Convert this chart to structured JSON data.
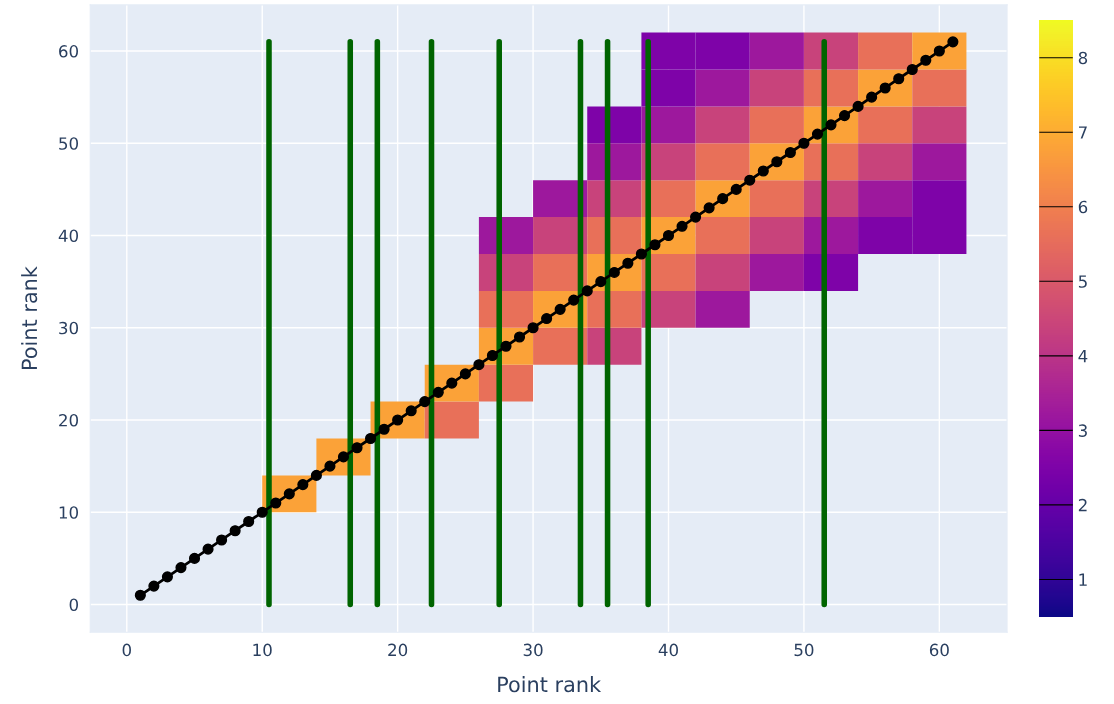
{
  "chart_data": {
    "type": "heatmap",
    "xlabel": "Point rank",
    "ylabel": "Point rank",
    "xlim": [
      -2.7,
      65
    ],
    "ylim": [
      -3,
      65
    ],
    "xticks": [
      0,
      10,
      20,
      30,
      40,
      50,
      60
    ],
    "yticks": [
      0,
      10,
      20,
      30,
      40,
      50,
      60
    ],
    "grid": true,
    "clim": [
      0.5,
      8.5
    ],
    "cticks": [
      1,
      2,
      3,
      4,
      5,
      6,
      7,
      8
    ],
    "x": [
      12,
      16,
      20,
      24,
      28,
      32,
      36,
      40,
      44,
      48,
      52,
      56,
      60
    ],
    "y": [
      12,
      16,
      20,
      24,
      28,
      32,
      36,
      40,
      44,
      48,
      52,
      56,
      60
    ],
    "cells": [
      [
        6.8,
        null,
        null,
        null,
        null,
        null,
        null,
        null,
        null,
        null,
        null,
        null,
        null
      ],
      [
        null,
        6.8,
        null,
        null,
        null,
        null,
        null,
        null,
        null,
        null,
        null,
        null,
        null
      ],
      [
        null,
        null,
        6.8,
        5.6,
        null,
        null,
        null,
        null,
        null,
        null,
        null,
        null,
        null
      ],
      [
        null,
        null,
        null,
        6.8,
        5.6,
        null,
        null,
        null,
        null,
        null,
        null,
        null,
        null
      ],
      [
        null,
        null,
        null,
        null,
        6.8,
        5.6,
        4.4,
        null,
        null,
        null,
        null,
        null,
        null
      ],
      [
        null,
        null,
        null,
        null,
        5.6,
        6.8,
        5.6,
        4.4,
        3.2,
        null,
        null,
        null,
        null
      ],
      [
        null,
        null,
        null,
        null,
        4.4,
        5.6,
        6.8,
        5.6,
        4.4,
        3.2,
        2.5,
        null,
        null
      ],
      [
        null,
        null,
        null,
        null,
        3.2,
        4.4,
        5.6,
        6.8,
        5.6,
        4.4,
        3.2,
        2.5,
        2.5
      ],
      [
        null,
        null,
        null,
        null,
        null,
        3.2,
        4.4,
        5.6,
        6.8,
        5.6,
        4.4,
        3.2,
        2.5
      ],
      [
        null,
        null,
        null,
        null,
        null,
        null,
        3.2,
        4.4,
        5.6,
        6.8,
        5.6,
        4.4,
        3.2
      ],
      [
        null,
        null,
        null,
        null,
        null,
        null,
        2.5,
        3.2,
        4.4,
        5.6,
        6.8,
        5.6,
        4.4
      ],
      [
        null,
        null,
        null,
        null,
        null,
        null,
        null,
        2.5,
        3.2,
        4.4,
        5.6,
        6.8,
        5.6
      ],
      [
        null,
        null,
        null,
        null,
        null,
        null,
        null,
        2.5,
        2.5,
        3.2,
        4.4,
        5.6,
        6.8
      ]
    ],
    "series": [
      {
        "type": "line",
        "color": "#006400",
        "marker": "none",
        "x": [
          10.5,
          10.5
        ],
        "values": [
          0,
          61
        ]
      },
      {
        "type": "line",
        "color": "#006400",
        "marker": "none",
        "x": [
          16.5,
          16.5
        ],
        "values": [
          0,
          61
        ]
      },
      {
        "type": "line",
        "color": "#006400",
        "marker": "none",
        "x": [
          18.5,
          18.5
        ],
        "values": [
          0,
          61
        ]
      },
      {
        "type": "line",
        "color": "#006400",
        "marker": "none",
        "x": [
          22.5,
          22.5
        ],
        "values": [
          0,
          61
        ]
      },
      {
        "type": "line",
        "color": "#006400",
        "marker": "none",
        "x": [
          27.5,
          27.5
        ],
        "values": [
          0,
          61
        ]
      },
      {
        "type": "line",
        "color": "#006400",
        "marker": "none",
        "x": [
          33.5,
          33.5
        ],
        "values": [
          0,
          61
        ]
      },
      {
        "type": "line",
        "color": "#006400",
        "marker": "none",
        "x": [
          35.5,
          35.5
        ],
        "values": [
          0,
          61
        ]
      },
      {
        "type": "line",
        "color": "#006400",
        "marker": "none",
        "x": [
          38.5,
          38.5
        ],
        "values": [
          0,
          61
        ]
      },
      {
        "type": "line",
        "color": "#006400",
        "marker": "none",
        "x": [
          51.5,
          51.5
        ],
        "values": [
          0,
          61
        ]
      },
      {
        "type": "line",
        "color": "#000000",
        "marker": "circle",
        "x": [
          1,
          2,
          3,
          4,
          5,
          6,
          7,
          8,
          9,
          10,
          11,
          12,
          13,
          14,
          15,
          16,
          17,
          18,
          19,
          20,
          21,
          22,
          23,
          24,
          25,
          26,
          27,
          28,
          29,
          30,
          31,
          32,
          33,
          34,
          35,
          36,
          37,
          38,
          39,
          40,
          41,
          42,
          43,
          44,
          45,
          46,
          47,
          48,
          49,
          50,
          51,
          52,
          53,
          54,
          55,
          56,
          57,
          58,
          59,
          60,
          61
        ],
        "values": [
          1,
          2,
          3,
          4,
          5,
          6,
          7,
          8,
          9,
          10,
          11,
          12,
          13,
          14,
          15,
          16,
          17,
          18,
          19,
          20,
          21,
          22,
          23,
          24,
          25,
          26,
          27,
          28,
          29,
          30,
          31,
          32,
          33,
          34,
          35,
          36,
          37,
          38,
          39,
          40,
          41,
          42,
          43,
          44,
          45,
          46,
          47,
          48,
          49,
          50,
          51,
          52,
          53,
          54,
          55,
          56,
          57,
          58,
          59,
          60,
          61
        ]
      }
    ]
  }
}
